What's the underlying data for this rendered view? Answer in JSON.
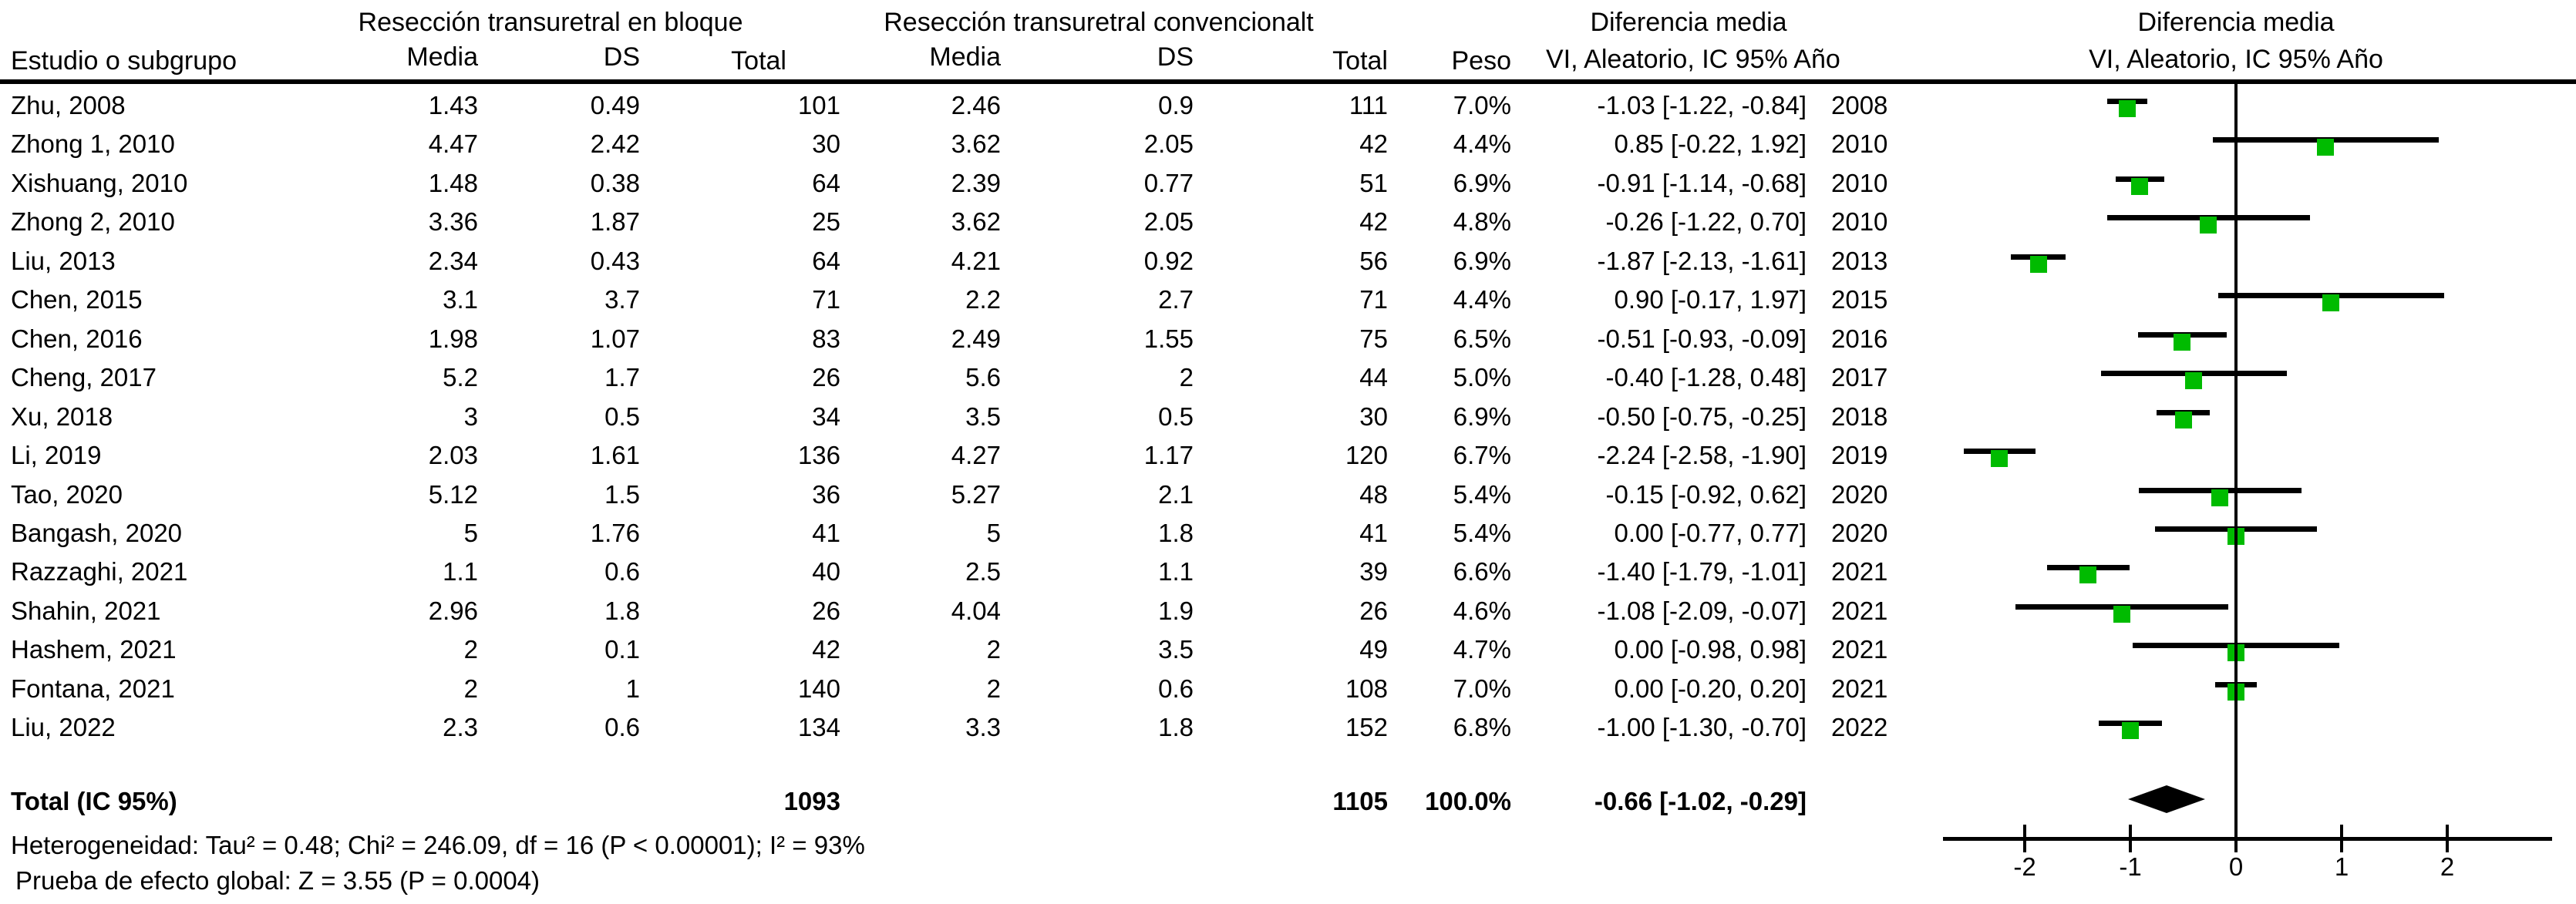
{
  "header": {
    "study_col": "Estudio o subgrupo",
    "group1_title": "Resección transuretral en bloque",
    "group2_title": "Resección transuretral convencionalt",
    "media_label": "Media",
    "ds_label": "DS",
    "total_label": "Total",
    "peso_label": "Peso",
    "effect_col_title": "Diferencia media",
    "effect_col_subtitle": "VI, Aleatorio, IC 95% Año",
    "plot_title": "Diferencia media",
    "plot_subtitle": "VI, Aleatorio, IC 95% Año"
  },
  "chart_data": {
    "type": "forest",
    "title": "Diferencia media",
    "subtitle": "VI, Aleatorio, IC 95% Año",
    "effect_measure": "Diferencia media",
    "model": "VI, Aleatorio, IC 95%",
    "x_ticks": [
      -2,
      -1,
      0,
      1,
      2
    ],
    "xlim": [
      -2.75,
      3.0
    ],
    "zero_line": 0,
    "studies": [
      {
        "name": "Zhu, 2008",
        "m1": "1.43",
        "sd1": "0.49",
        "n1": "101",
        "m2": "2.46",
        "sd2": "0.9",
        "n2": "111",
        "weight": "7.0%",
        "ci_text": "-1.03 [-1.22, -0.84]",
        "year": "2008",
        "md": -1.03,
        "lo": -1.22,
        "hi": -0.84
      },
      {
        "name": "Zhong 1, 2010",
        "m1": "4.47",
        "sd1": "2.42",
        "n1": "30",
        "m2": "3.62",
        "sd2": "2.05",
        "n2": "42",
        "weight": "4.4%",
        "ci_text": "0.85 [-0.22, 1.92]",
        "year": "2010",
        "md": 0.85,
        "lo": -0.22,
        "hi": 1.92
      },
      {
        "name": "Xishuang, 2010",
        "m1": "1.48",
        "sd1": "0.38",
        "n1": "64",
        "m2": "2.39",
        "sd2": "0.77",
        "n2": "51",
        "weight": "6.9%",
        "ci_text": "-0.91 [-1.14, -0.68]",
        "year": "2010",
        "md": -0.91,
        "lo": -1.14,
        "hi": -0.68
      },
      {
        "name": "Zhong 2, 2010",
        "m1": "3.36",
        "sd1": "1.87",
        "n1": "25",
        "m2": "3.62",
        "sd2": "2.05",
        "n2": "42",
        "weight": "4.8%",
        "ci_text": "-0.26 [-1.22, 0.70]",
        "year": "2010",
        "md": -0.26,
        "lo": -1.22,
        "hi": 0.7
      },
      {
        "name": "Liu, 2013",
        "m1": "2.34",
        "sd1": "0.43",
        "n1": "64",
        "m2": "4.21",
        "sd2": "0.92",
        "n2": "56",
        "weight": "6.9%",
        "ci_text": "-1.87 [-2.13, -1.61]",
        "year": "2013",
        "md": -1.87,
        "lo": -2.13,
        "hi": -1.61
      },
      {
        "name": "Chen, 2015",
        "m1": "3.1",
        "sd1": "3.7",
        "n1": "71",
        "m2": "2.2",
        "sd2": "2.7",
        "n2": "71",
        "weight": "4.4%",
        "ci_text": "0.90 [-0.17, 1.97]",
        "year": "2015",
        "md": 0.9,
        "lo": -0.17,
        "hi": 1.97
      },
      {
        "name": "Chen, 2016",
        "m1": "1.98",
        "sd1": "1.07",
        "n1": "83",
        "m2": "2.49",
        "sd2": "1.55",
        "n2": "75",
        "weight": "6.5%",
        "ci_text": "-0.51 [-0.93, -0.09]",
        "year": "2016",
        "md": -0.51,
        "lo": -0.93,
        "hi": -0.09
      },
      {
        "name": "Cheng, 2017",
        "m1": "5.2",
        "sd1": "1.7",
        "n1": "26",
        "m2": "5.6",
        "sd2": "2",
        "n2": "44",
        "weight": "5.0%",
        "ci_text": "-0.40 [-1.28, 0.48]",
        "year": "2017",
        "md": -0.4,
        "lo": -1.28,
        "hi": 0.48
      },
      {
        "name": "Xu, 2018",
        "m1": "3",
        "sd1": "0.5",
        "n1": "34",
        "m2": "3.5",
        "sd2": "0.5",
        "n2": "30",
        "weight": "6.9%",
        "ci_text": "-0.50 [-0.75, -0.25]",
        "year": "2018",
        "md": -0.5,
        "lo": -0.75,
        "hi": -0.25
      },
      {
        "name": "Li, 2019",
        "m1": "2.03",
        "sd1": "1.61",
        "n1": "136",
        "m2": "4.27",
        "sd2": "1.17",
        "n2": "120",
        "weight": "6.7%",
        "ci_text": "-2.24 [-2.58, -1.90]",
        "year": "2019",
        "md": -2.24,
        "lo": -2.58,
        "hi": -1.9
      },
      {
        "name": "Tao, 2020",
        "m1": "5.12",
        "sd1": "1.5",
        "n1": "36",
        "m2": "5.27",
        "sd2": "2.1",
        "n2": "48",
        "weight": "5.4%",
        "ci_text": "-0.15 [-0.92, 0.62]",
        "year": "2020",
        "md": -0.15,
        "lo": -0.92,
        "hi": 0.62
      },
      {
        "name": "Bangash, 2020",
        "m1": "5",
        "sd1": "1.76",
        "n1": "41",
        "m2": "5",
        "sd2": "1.8",
        "n2": "41",
        "weight": "5.4%",
        "ci_text": "0.00 [-0.77, 0.77]",
        "year": "2020",
        "md": 0.0,
        "lo": -0.77,
        "hi": 0.77
      },
      {
        "name": "Razzaghi, 2021",
        "m1": "1.1",
        "sd1": "0.6",
        "n1": "40",
        "m2": "2.5",
        "sd2": "1.1",
        "n2": "39",
        "weight": "6.6%",
        "ci_text": "-1.40 [-1.79, -1.01]",
        "year": "2021",
        "md": -1.4,
        "lo": -1.79,
        "hi": -1.01
      },
      {
        "name": "Shahin, 2021",
        "m1": "2.96",
        "sd1": "1.8",
        "n1": "26",
        "m2": "4.04",
        "sd2": "1.9",
        "n2": "26",
        "weight": "4.6%",
        "ci_text": "-1.08 [-2.09, -0.07]",
        "year": "2021",
        "md": -1.08,
        "lo": -2.09,
        "hi": -0.07
      },
      {
        "name": "Hashem, 2021",
        "m1": "2",
        "sd1": "0.1",
        "n1": "42",
        "m2": "2",
        "sd2": "3.5",
        "n2": "49",
        "weight": "4.7%",
        "ci_text": "0.00 [-0.98, 0.98]",
        "year": "2021",
        "md": 0.0,
        "lo": -0.98,
        "hi": 0.98
      },
      {
        "name": "Fontana, 2021",
        "m1": "2",
        "sd1": "1",
        "n1": "140",
        "m2": "2",
        "sd2": "0.6",
        "n2": "108",
        "weight": "7.0%",
        "ci_text": "0.00 [-0.20, 0.20]",
        "year": "2021",
        "md": 0.0,
        "lo": -0.2,
        "hi": 0.2
      },
      {
        "name": "Liu, 2022",
        "m1": "2.3",
        "sd1": "0.6",
        "n1": "134",
        "m2": "3.3",
        "sd2": "1.8",
        "n2": "152",
        "weight": "6.8%",
        "ci_text": "-1.00 [-1.30, -0.70]",
        "year": "2022",
        "md": -1.0,
        "lo": -1.3,
        "hi": -0.7
      }
    ],
    "total": {
      "label": "Total (IC 95%)",
      "n1": "1093",
      "n2": "1105",
      "weight": "100.0%",
      "ci_text": "-0.66 [-1.02, -0.29]",
      "md": -0.66,
      "lo": -1.02,
      "hi": -0.29
    },
    "heterogeneity": "Heterogeneidad:  Tau² = 0.48; Chi² = 246.09, df = 16 (P < 0.00001); I² = 93%",
    "overall_effect_test": "Prueba de efecto global:  Z = 3.55 (P = 0.0004)"
  },
  "colors": {
    "marker_green": "#00bb00",
    "line_black": "#000000",
    "background": "#ffffff"
  }
}
